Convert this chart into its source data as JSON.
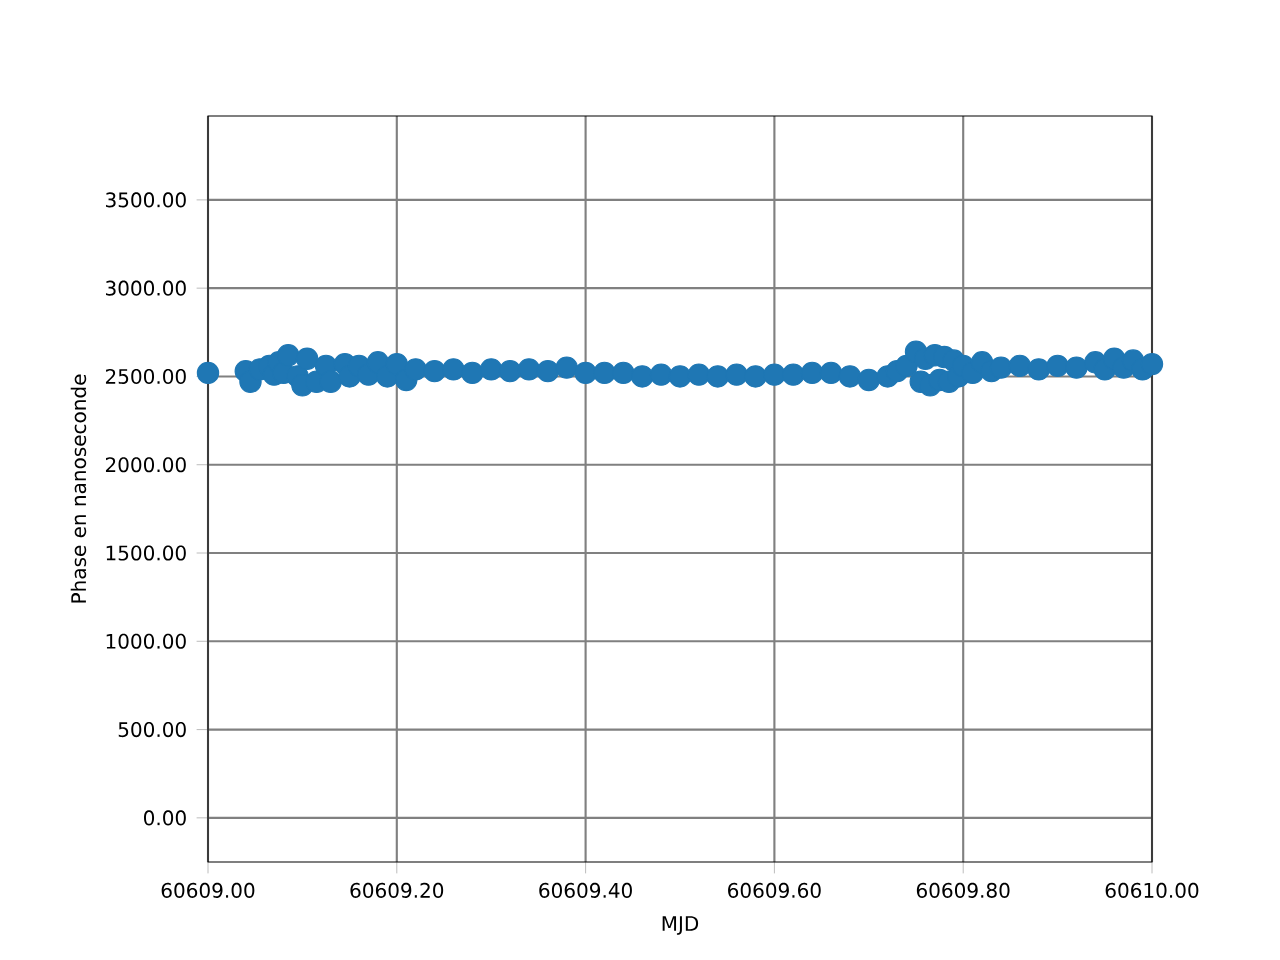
{
  "chart_data": {
    "type": "scatter",
    "xlabel": "MJD",
    "ylabel": "Phase en nanoseconde",
    "x": [
      60609.0,
      60609.04,
      60609.045,
      60609.055,
      60609.065,
      60609.07,
      60609.075,
      60609.08,
      60609.085,
      60609.095,
      60609.1,
      60609.105,
      60609.115,
      60609.125,
      60609.13,
      60609.145,
      60609.15,
      60609.16,
      60609.17,
      60609.18,
      60609.19,
      60609.2,
      60609.21,
      60609.22,
      60609.24,
      60609.26,
      60609.28,
      60609.3,
      60609.32,
      60609.34,
      60609.36,
      60609.38,
      60609.4,
      60609.42,
      60609.44,
      60609.46,
      60609.48,
      60609.5,
      60609.52,
      60609.54,
      60609.56,
      60609.58,
      60609.6,
      60609.62,
      60609.64,
      60609.66,
      60609.68,
      60609.7,
      60609.72,
      60609.73,
      60609.74,
      60609.75,
      60609.755,
      60609.76,
      60609.765,
      60609.77,
      60609.775,
      60609.78,
      60609.785,
      60609.79,
      60609.795,
      60609.8,
      60609.81,
      60609.82,
      60609.83,
      60609.84,
      60609.86,
      60609.88,
      60609.9,
      60609.92,
      60609.94,
      60609.95,
      60609.96,
      60609.97,
      60609.98,
      60609.99,
      60610.0
    ],
    "values": [
      2520,
      2530,
      2470,
      2540,
      2560,
      2510,
      2580,
      2520,
      2620,
      2500,
      2450,
      2600,
      2470,
      2560,
      2470,
      2570,
      2500,
      2560,
      2510,
      2580,
      2500,
      2570,
      2480,
      2540,
      2530,
      2540,
      2520,
      2540,
      2530,
      2540,
      2530,
      2550,
      2520,
      2520,
      2520,
      2500,
      2510,
      2500,
      2510,
      2500,
      2510,
      2500,
      2510,
      2510,
      2520,
      2520,
      2500,
      2480,
      2500,
      2530,
      2560,
      2640,
      2470,
      2600,
      2450,
      2620,
      2480,
      2610,
      2470,
      2590,
      2500,
      2560,
      2520,
      2580,
      2530,
      2550,
      2560,
      2540,
      2560,
      2550,
      2580,
      2540,
      2600,
      2550,
      2590,
      2540,
      2570
    ],
    "color": "#1f77b4",
    "grid": true,
    "xlim": [
      60609.0,
      60610.0
    ],
    "ylim": [
      -250,
      3975
    ],
    "xticks": [
      {
        "value": 60609.0,
        "label": "60609.00"
      },
      {
        "value": 60609.2,
        "label": "60609.20"
      },
      {
        "value": 60609.4,
        "label": "60609.40"
      },
      {
        "value": 60609.6,
        "label": "60609.60"
      },
      {
        "value": 60609.8,
        "label": "60609.80"
      },
      {
        "value": 60610.0,
        "label": "60610.00"
      }
    ],
    "yticks": [
      {
        "value": 0,
        "label": "0.00"
      },
      {
        "value": 500,
        "label": "500.00"
      },
      {
        "value": 1000,
        "label": "1000.00"
      },
      {
        "value": 1500,
        "label": "1500.00"
      },
      {
        "value": 2000,
        "label": "2000.00"
      },
      {
        "value": 2500,
        "label": "2500.00"
      },
      {
        "value": 3000,
        "label": "3000.00"
      },
      {
        "value": 3500,
        "label": "3500.00"
      }
    ]
  }
}
